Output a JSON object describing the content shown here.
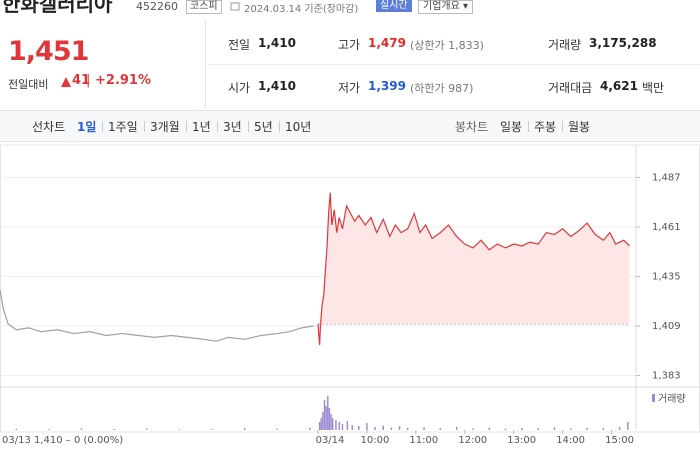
{
  "header": {
    "name": "한화갤러리아",
    "code": "452260",
    "market": "코스피",
    "date": "2024.03.14 기준(장마감)",
    "buttons": [
      "실시간",
      "기업개요"
    ]
  },
  "price": {
    "current": "1,451",
    "change_label": "전일대비",
    "change": "41",
    "change_pct": "+2.91%"
  },
  "stats": [
    [
      {
        "label": "전일",
        "value": "1,410"
      },
      {
        "label": "고가",
        "value": "1,479",
        "color": "#e22a2a",
        "note": "(상한가 1,833)"
      },
      {
        "label": "거래량",
        "value": "3,175,288"
      }
    ],
    [
      {
        "label": "시가",
        "value": "1,410"
      },
      {
        "label": "저가",
        "value": "1,399",
        "color": "#1f5bd6",
        "note": "(하한가 987)"
      },
      {
        "label": "거래대금",
        "value": "4,621",
        "unit": "백만"
      }
    ]
  ],
  "tabs": {
    "line_label": "선차트",
    "line_periods": [
      "1일",
      "1주일",
      "3개월",
      "1년",
      "3년",
      "5년",
      "10년"
    ],
    "active": 0,
    "candle_label": "봉차트",
    "candle_periods": [
      "일봉",
      "주봉",
      "월봉"
    ]
  },
  "chart_data": {
    "type": "line",
    "grid": true,
    "ylim": [
      1378,
      1504
    ],
    "yticks": [
      {
        "value": 1383,
        "label": "1,383"
      },
      {
        "value": 1409,
        "label": "1,409"
      },
      {
        "value": 1435,
        "label": "1,435"
      },
      {
        "value": 1461,
        "label": "1,461"
      },
      {
        "value": 1487,
        "label": "1,487"
      }
    ],
    "xlim": [
      0,
      780
    ],
    "xticks": [
      {
        "value": 390,
        "label": "03/14"
      },
      {
        "value": 450,
        "label": "10:00"
      },
      {
        "value": 510,
        "label": "11:00"
      },
      {
        "value": 570,
        "label": "12:00"
      },
      {
        "value": 630,
        "label": "13:00"
      },
      {
        "value": 690,
        "label": "14:00"
      },
      {
        "value": 750,
        "label": "15:00"
      }
    ],
    "base_value": 1410,
    "fill_color": "#fde6e6",
    "series": [
      {
        "color": "#a0a0a0",
        "x": [
          0,
          4,
          10,
          20,
          35,
          50,
          70,
          90,
          110,
          130,
          150,
          170,
          190,
          210,
          230,
          250,
          265,
          280,
          300,
          320,
          340,
          355,
          370,
          385
        ],
        "values": [
          1428,
          1418,
          1410,
          1407,
          1408,
          1406,
          1407,
          1405,
          1406,
          1404,
          1405,
          1404,
          1403,
          1404,
          1403,
          1402,
          1401,
          1403,
          1402,
          1404,
          1405,
          1406,
          1408,
          1409
        ]
      },
      {
        "color": "#e0363a",
        "x": [
          390,
          391,
          392,
          393,
          395,
          397,
          399,
          401,
          403,
          405,
          407,
          410,
          413,
          416,
          420,
          425,
          430,
          435,
          440,
          448,
          455,
          462,
          470,
          478,
          485,
          492,
          500,
          508,
          515,
          522,
          530,
          540,
          550,
          560,
          570,
          580,
          590,
          600,
          610,
          620,
          630,
          640,
          650,
          660,
          670,
          680,
          690,
          700,
          710,
          720,
          730,
          740,
          748,
          755,
          765,
          772
        ],
        "values": [
          1410,
          1404,
          1399,
          1409,
          1420,
          1425,
          1438,
          1450,
          1468,
          1479,
          1462,
          1470,
          1458,
          1466,
          1460,
          1472,
          1468,
          1464,
          1467,
          1462,
          1466,
          1458,
          1465,
          1456,
          1462,
          1458,
          1460,
          1468,
          1458,
          1462,
          1455,
          1458,
          1462,
          1456,
          1452,
          1450,
          1454,
          1449,
          1452,
          1450,
          1452,
          1451,
          1453,
          1452,
          1458,
          1457,
          1460,
          1456,
          1459,
          1463,
          1457,
          1454,
          1458,
          1452,
          1454,
          1451
        ]
      }
    ],
    "footer": "03/13 1,410 – 0 (0.00%)",
    "volume": {
      "name": "거래량",
      "color": "#9b87d2",
      "ylim": [
        0,
        200000
      ],
      "x": [
        20,
        60,
        100,
        140,
        180,
        220,
        260,
        300,
        340,
        380,
        392,
        394,
        396,
        398,
        400,
        402,
        404,
        406,
        408,
        412,
        416,
        420,
        426,
        432,
        440,
        450,
        460,
        470,
        480,
        490,
        500,
        520,
        540,
        560,
        580,
        600,
        620,
        640,
        660,
        680,
        700,
        720,
        740,
        760,
        770
      ],
      "values": [
        6000,
        4000,
        8000,
        5000,
        7000,
        4000,
        6000,
        9000,
        7000,
        12000,
        40000,
        60000,
        90000,
        150000,
        120000,
        170000,
        110000,
        80000,
        60000,
        50000,
        40000,
        30000,
        45000,
        25000,
        20000,
        35000,
        15000,
        22000,
        12000,
        18000,
        10000,
        14000,
        9000,
        16000,
        8000,
        12000,
        7000,
        10000,
        9000,
        14000,
        8000,
        11000,
        9000,
        15000,
        40000
      ]
    }
  }
}
